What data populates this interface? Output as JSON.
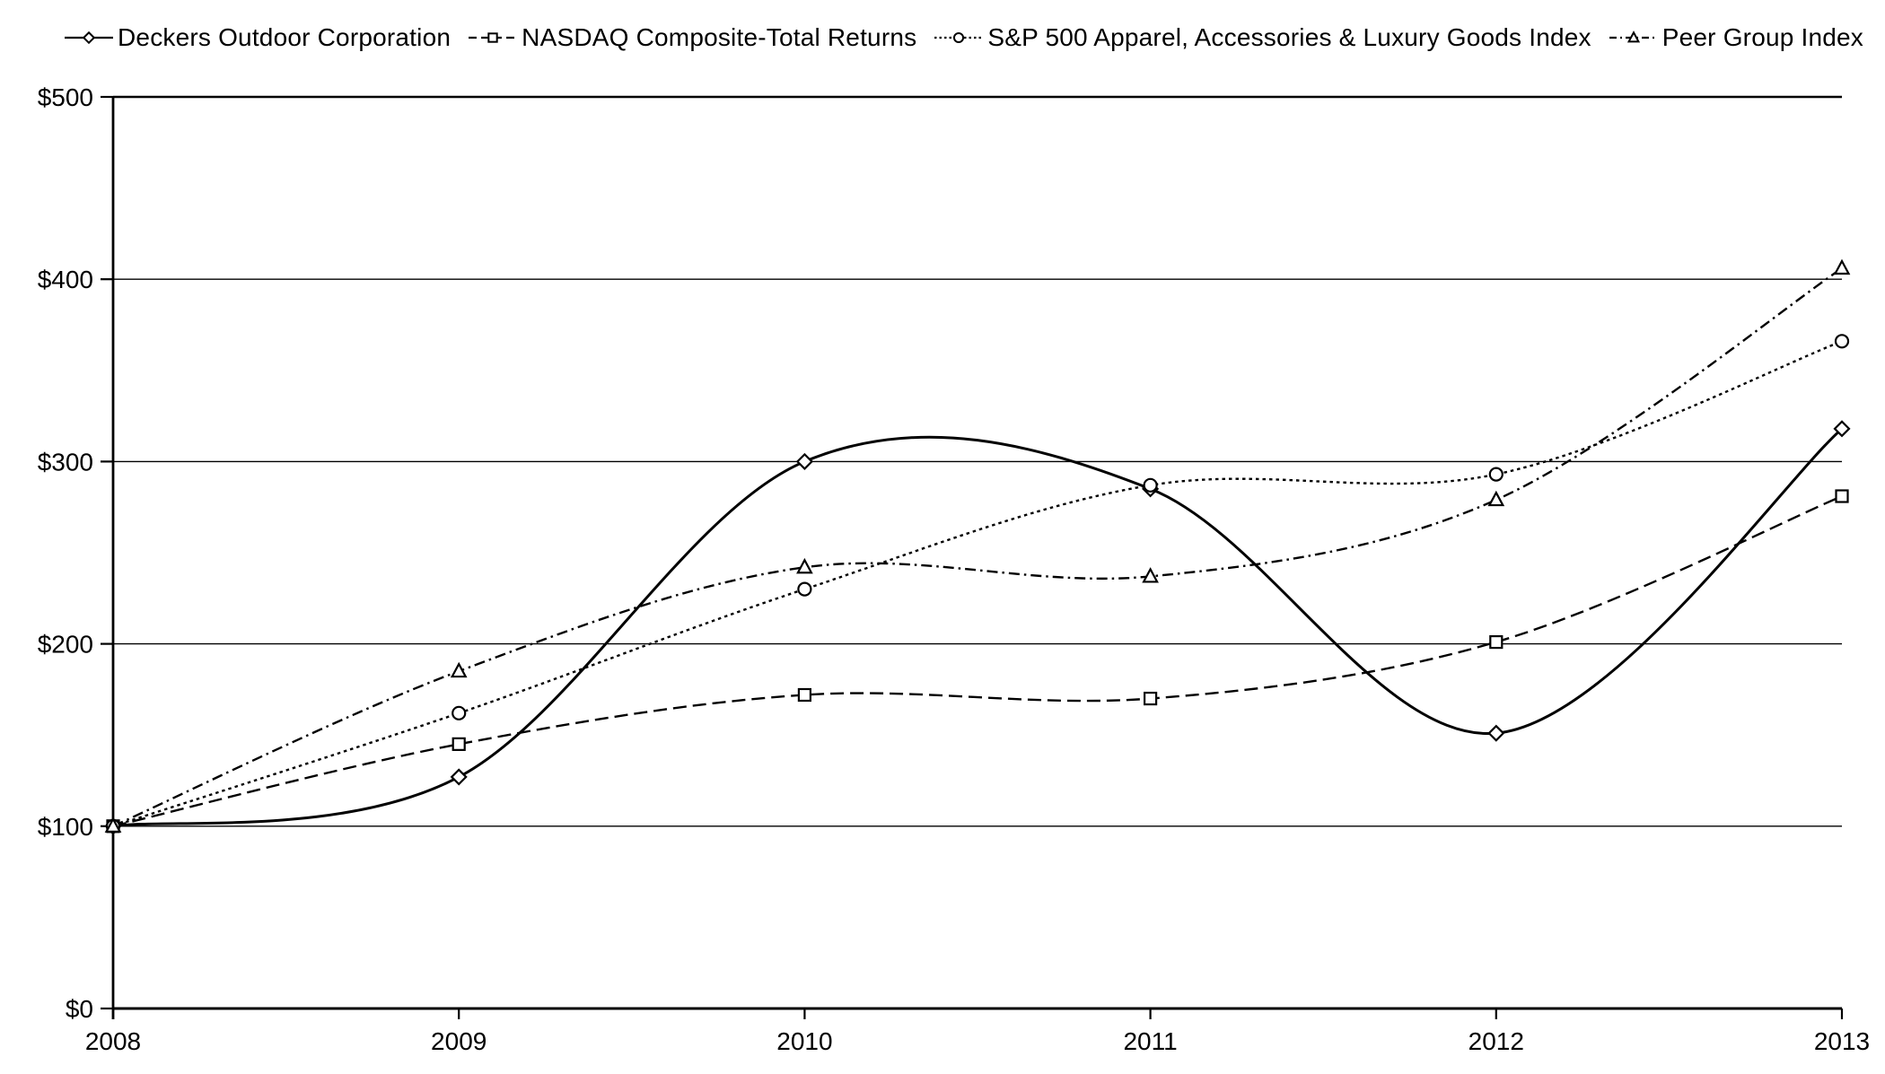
{
  "page": {
    "background_color": "#ffffff",
    "foreground_color": "#000000"
  },
  "legend": {
    "position": "top",
    "items": [
      {
        "label": "Deckers Outdoor Corporation",
        "marker": "diamond",
        "line_style": "solid"
      },
      {
        "label": "NASDAQ Composite-Total Returns",
        "marker": "square",
        "line_style": "dashed"
      },
      {
        "label": "S&P 500 Apparel, Accessories & Luxury Goods Index",
        "marker": "circle",
        "line_style": "dotted"
      },
      {
        "label": "Peer Group Index",
        "marker": "triangle",
        "line_style": "dashdot"
      }
    ]
  },
  "chart_data": {
    "type": "line",
    "smoothed": true,
    "grid": "horizontal",
    "legend_position": "top",
    "line_color": "#000000",
    "marker_fill": "#ffffff",
    "x": [
      2008,
      2009,
      2010,
      2011,
      2012,
      2013
    ],
    "x_tick_labels": [
      "2008",
      "2009",
      "2010",
      "2011",
      "2012",
      "2013"
    ],
    "ylim": [
      0,
      500
    ],
    "y_step": 100,
    "y_tick_labels": [
      "$0",
      "$100",
      "$200",
      "$300",
      "$400",
      "$500"
    ],
    "xlabel": "",
    "ylabel": "",
    "series": [
      {
        "name": "Deckers Outdoor Corporation",
        "marker": "diamond",
        "line_style": "solid",
        "values": [
          100,
          127,
          300,
          285,
          151,
          318
        ]
      },
      {
        "name": "NASDAQ Composite-Total Returns",
        "marker": "square",
        "line_style": "dashed",
        "values": [
          100,
          145,
          172,
          170,
          201,
          281
        ]
      },
      {
        "name": "S&P 500 Apparel, Accessories & Luxury Goods Index",
        "marker": "circle",
        "line_style": "dotted",
        "values": [
          100,
          162,
          230,
          287,
          293,
          366
        ]
      },
      {
        "name": "Peer Group Index",
        "marker": "triangle",
        "line_style": "dashdot",
        "values": [
          100,
          185,
          242,
          237,
          279,
          406
        ]
      }
    ]
  }
}
